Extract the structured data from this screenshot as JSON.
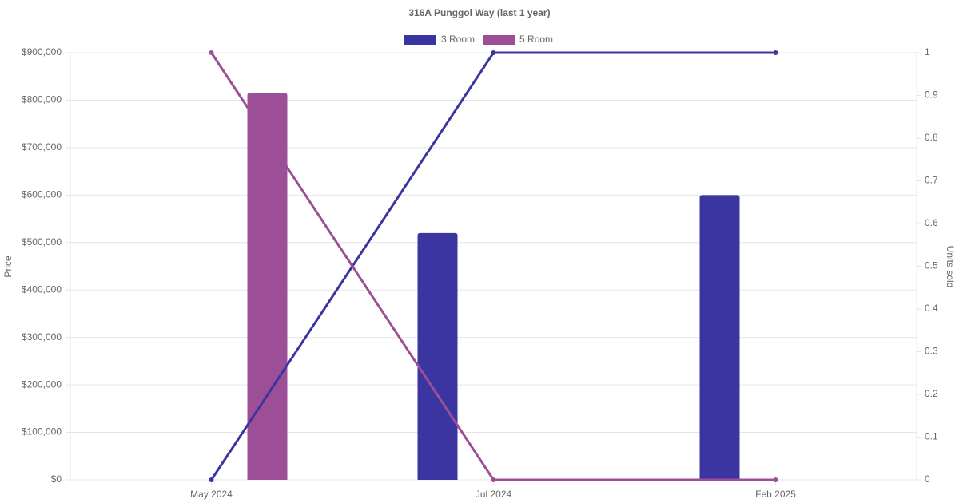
{
  "chart_data": {
    "type": "bar-line",
    "title": "316A Punggol Way (last 1 year)",
    "categories": [
      "May 2024",
      "Jul 2024",
      "Feb 2025"
    ],
    "series": [
      {
        "name": "3 Room",
        "color": "#3a35a0",
        "values": [
          null,
          520000,
          600000
        ],
        "units": [
          0,
          1,
          1
        ]
      },
      {
        "name": "5 Room",
        "color": "#9c4f96",
        "values": [
          815000,
          null,
          null
        ],
        "units": [
          1,
          0,
          0
        ]
      }
    ],
    "ylabel": "Price",
    "y2label": "Units sold",
    "ylim": [
      0,
      900000
    ],
    "yticks": [
      {
        "value": 0,
        "label": "$0"
      },
      {
        "value": 100000,
        "label": "$100,000"
      },
      {
        "value": 200000,
        "label": "$200,000"
      },
      {
        "value": 300000,
        "label": "$300,000"
      },
      {
        "value": 400000,
        "label": "$400,000"
      },
      {
        "value": 500000,
        "label": "$500,000"
      },
      {
        "value": 600000,
        "label": "$600,000"
      },
      {
        "value": 700000,
        "label": "$700,000"
      },
      {
        "value": 800000,
        "label": "$800,000"
      },
      {
        "value": 900000,
        "label": "$900,000"
      }
    ],
    "y2lim": [
      0,
      1
    ],
    "y2ticks": [
      0,
      0.1,
      0.2,
      0.3,
      0.4,
      0.5,
      0.6,
      0.7,
      0.8,
      0.9,
      1
    ],
    "grid": true,
    "legend": "top"
  }
}
